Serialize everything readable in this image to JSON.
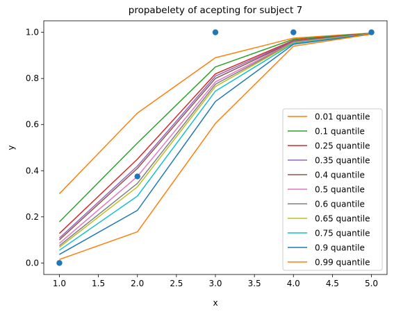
{
  "chart_data": {
    "type": "line",
    "title": "propabelety of acepting for subject 7",
    "xlabel": "x",
    "ylabel": "y",
    "xlim": [
      0.8,
      5.2
    ],
    "ylim": [
      -0.05,
      1.05
    ],
    "xticks": [
      1.0,
      1.5,
      2.0,
      2.5,
      3.0,
      3.5,
      4.0,
      4.5,
      5.0
    ],
    "xtick_labels": [
      "1.0",
      "1.5",
      "2.0",
      "2.5",
      "3.0",
      "3.5",
      "4.0",
      "4.5",
      "5.0"
    ],
    "yticks": [
      0.0,
      0.2,
      0.4,
      0.6,
      0.8,
      1.0
    ],
    "ytick_labels": [
      "0.0",
      "0.2",
      "0.4",
      "0.6",
      "0.8",
      "1.0"
    ],
    "grid": false,
    "legend_position": "lower-right",
    "x": [
      1,
      2,
      3,
      4,
      5
    ],
    "series": [
      {
        "name": "0.01 quantile",
        "color": "#ff7f0e",
        "values": [
          0.3,
          0.65,
          0.89,
          0.975,
          0.997
        ]
      },
      {
        "name": "0.1 quantile",
        "color": "#2ca02c",
        "values": [
          0.178,
          0.52,
          0.85,
          0.97,
          0.996
        ]
      },
      {
        "name": "0.25 quantile",
        "color": "#d62728",
        "values": [
          0.128,
          0.45,
          0.82,
          0.965,
          0.995
        ]
      },
      {
        "name": "0.35 quantile",
        "color": "#9467bd",
        "values": [
          0.108,
          0.42,
          0.81,
          0.962,
          0.995
        ]
      },
      {
        "name": "0.4 quantile",
        "color": "#8c564b",
        "values": [
          0.1,
          0.41,
          0.8,
          0.96,
          0.995
        ]
      },
      {
        "name": "0.5 quantile",
        "color": "#e377c2",
        "values": [
          0.085,
          0.375,
          0.785,
          0.958,
          0.994
        ]
      },
      {
        "name": "0.6 quantile",
        "color": "#7f7f7f",
        "values": [
          0.075,
          0.345,
          0.775,
          0.956,
          0.994
        ]
      },
      {
        "name": "0.65 quantile",
        "color": "#bcbd22",
        "values": [
          0.068,
          0.33,
          0.765,
          0.955,
          0.994
        ]
      },
      {
        "name": "0.75 quantile",
        "color": "#17becf",
        "values": [
          0.055,
          0.29,
          0.745,
          0.952,
          0.993
        ]
      },
      {
        "name": "0.9 quantile",
        "color": "#1f77b4",
        "values": [
          0.037,
          0.228,
          0.7,
          0.948,
          0.993
        ]
      },
      {
        "name": "0.99 quantile",
        "color": "#ff7f0e",
        "values": [
          0.015,
          0.135,
          0.605,
          0.94,
          0.992
        ]
      }
    ],
    "scatter": {
      "color": "#1f77b4",
      "x": [
        1,
        2,
        3,
        4,
        5
      ],
      "y": [
        0.0,
        0.375,
        1.0,
        1.0,
        1.0
      ]
    }
  }
}
